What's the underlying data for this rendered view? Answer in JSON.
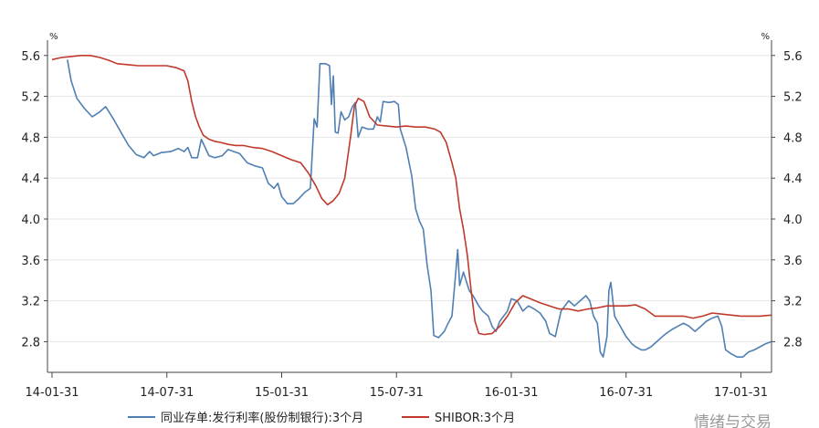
{
  "chart_data": {
    "type": "line",
    "title": "",
    "y_unit": "%",
    "ylim": [
      2.5,
      5.75
    ],
    "y_ticks": [
      "5.6",
      "5.2",
      "4.8",
      "4.4",
      "4.0",
      "3.6",
      "3.2",
      "2.8"
    ],
    "x_tick_labels": [
      "14-01-31",
      "14-07-31",
      "15-01-31",
      "15-07-31",
      "16-01-31",
      "16-07-31",
      "17-01-31"
    ],
    "x_range_months": [
      0,
      37.6
    ],
    "legend_position": "bottom",
    "grid": "horizontal",
    "series": [
      {
        "name": "同业存单:发行利率(股份制银行):3个月",
        "color": "#4f7fb3",
        "points": [
          [
            0.8,
            5.56
          ],
          [
            1.0,
            5.35
          ],
          [
            1.3,
            5.18
          ],
          [
            1.7,
            5.08
          ],
          [
            2.1,
            5.0
          ],
          [
            2.5,
            5.05
          ],
          [
            2.8,
            5.1
          ],
          [
            3.2,
            4.98
          ],
          [
            3.6,
            4.85
          ],
          [
            4.0,
            4.72
          ],
          [
            4.4,
            4.63
          ],
          [
            4.8,
            4.6
          ],
          [
            5.1,
            4.66
          ],
          [
            5.3,
            4.62
          ],
          [
            5.7,
            4.65
          ],
          [
            6.2,
            4.66
          ],
          [
            6.6,
            4.69
          ],
          [
            6.9,
            4.66
          ],
          [
            7.1,
            4.7
          ],
          [
            7.3,
            4.6
          ],
          [
            7.6,
            4.6
          ],
          [
            7.8,
            4.78
          ],
          [
            8.0,
            4.7
          ],
          [
            8.2,
            4.62
          ],
          [
            8.5,
            4.6
          ],
          [
            8.9,
            4.62
          ],
          [
            9.2,
            4.68
          ],
          [
            9.5,
            4.66
          ],
          [
            9.8,
            4.64
          ],
          [
            10.2,
            4.55
          ],
          [
            10.6,
            4.52
          ],
          [
            11.0,
            4.5
          ],
          [
            11.3,
            4.35
          ],
          [
            11.6,
            4.3
          ],
          [
            11.8,
            4.35
          ],
          [
            12.0,
            4.22
          ],
          [
            12.3,
            4.15
          ],
          [
            12.6,
            4.15
          ],
          [
            12.9,
            4.2
          ],
          [
            13.2,
            4.26
          ],
          [
            13.5,
            4.3
          ],
          [
            13.7,
            4.98
          ],
          [
            13.85,
            4.9
          ],
          [
            14.0,
            5.52
          ],
          [
            14.3,
            5.52
          ],
          [
            14.5,
            5.5
          ],
          [
            14.6,
            5.12
          ],
          [
            14.7,
            5.4
          ],
          [
            14.8,
            4.85
          ],
          [
            14.95,
            4.84
          ],
          [
            15.1,
            5.05
          ],
          [
            15.3,
            4.97
          ],
          [
            15.5,
            5.0
          ],
          [
            15.7,
            5.1
          ],
          [
            15.85,
            5.14
          ],
          [
            16.0,
            4.8
          ],
          [
            16.2,
            4.9
          ],
          [
            16.5,
            4.88
          ],
          [
            16.8,
            4.88
          ],
          [
            17.0,
            5.0
          ],
          [
            17.15,
            4.95
          ],
          [
            17.3,
            5.15
          ],
          [
            17.6,
            5.14
          ],
          [
            17.9,
            5.15
          ],
          [
            18.1,
            5.12
          ],
          [
            18.2,
            4.88
          ],
          [
            18.5,
            4.7
          ],
          [
            18.8,
            4.42
          ],
          [
            19.0,
            4.1
          ],
          [
            19.2,
            3.98
          ],
          [
            19.4,
            3.9
          ],
          [
            19.6,
            3.55
          ],
          [
            19.8,
            3.3
          ],
          [
            19.95,
            2.86
          ],
          [
            20.2,
            2.84
          ],
          [
            20.5,
            2.9
          ],
          [
            20.7,
            2.98
          ],
          [
            20.9,
            3.05
          ],
          [
            21.1,
            3.48
          ],
          [
            21.2,
            3.7
          ],
          [
            21.3,
            3.35
          ],
          [
            21.5,
            3.48
          ],
          [
            21.8,
            3.3
          ],
          [
            22.0,
            3.25
          ],
          [
            22.3,
            3.15
          ],
          [
            22.5,
            3.1
          ],
          [
            22.8,
            3.05
          ],
          [
            23.0,
            2.95
          ],
          [
            23.2,
            2.9
          ],
          [
            23.4,
            3.0
          ],
          [
            23.6,
            3.05
          ],
          [
            23.8,
            3.1
          ],
          [
            24.0,
            3.22
          ],
          [
            24.3,
            3.2
          ],
          [
            24.6,
            3.1
          ],
          [
            24.9,
            3.15
          ],
          [
            25.2,
            3.12
          ],
          [
            25.5,
            3.08
          ],
          [
            25.8,
            3.0
          ],
          [
            26.0,
            2.88
          ],
          [
            26.3,
            2.85
          ],
          [
            26.6,
            3.1
          ],
          [
            27.0,
            3.2
          ],
          [
            27.3,
            3.15
          ],
          [
            27.6,
            3.2
          ],
          [
            27.9,
            3.25
          ],
          [
            28.1,
            3.2
          ],
          [
            28.3,
            3.05
          ],
          [
            28.5,
            2.98
          ],
          [
            28.65,
            2.7
          ],
          [
            28.8,
            2.65
          ],
          [
            29.0,
            2.85
          ],
          [
            29.1,
            3.3
          ],
          [
            29.2,
            3.38
          ],
          [
            29.4,
            3.05
          ],
          [
            29.7,
            2.95
          ],
          [
            30.0,
            2.85
          ],
          [
            30.3,
            2.78
          ],
          [
            30.5,
            2.75
          ],
          [
            30.8,
            2.72
          ],
          [
            31.0,
            2.72
          ],
          [
            31.3,
            2.75
          ],
          [
            31.6,
            2.8
          ],
          [
            31.9,
            2.85
          ],
          [
            32.1,
            2.88
          ],
          [
            32.4,
            2.92
          ],
          [
            32.7,
            2.95
          ],
          [
            33.0,
            2.98
          ],
          [
            33.3,
            2.95
          ],
          [
            33.6,
            2.9
          ],
          [
            33.9,
            2.95
          ],
          [
            34.2,
            3.0
          ],
          [
            34.5,
            3.03
          ],
          [
            34.8,
            3.05
          ],
          [
            35.0,
            2.95
          ],
          [
            35.2,
            2.72
          ],
          [
            35.5,
            2.68
          ],
          [
            35.8,
            2.65
          ],
          [
            36.1,
            2.65
          ],
          [
            36.4,
            2.7
          ],
          [
            36.7,
            2.72
          ],
          [
            37.0,
            2.75
          ],
          [
            37.3,
            2.78
          ],
          [
            37.6,
            2.8
          ]
        ]
      },
      {
        "name": "SHIBOR:3个月",
        "color": "#c0392b",
        "points": [
          [
            0,
            5.56
          ],
          [
            0.5,
            5.58
          ],
          [
            1.0,
            5.59
          ],
          [
            1.5,
            5.6
          ],
          [
            2.0,
            5.6
          ],
          [
            2.5,
            5.58
          ],
          [
            3.0,
            5.55
          ],
          [
            3.4,
            5.52
          ],
          [
            4.0,
            5.51
          ],
          [
            4.5,
            5.5
          ],
          [
            5.0,
            5.5
          ],
          [
            5.5,
            5.5
          ],
          [
            6.0,
            5.5
          ],
          [
            6.5,
            5.48
          ],
          [
            6.9,
            5.45
          ],
          [
            7.1,
            5.35
          ],
          [
            7.3,
            5.15
          ],
          [
            7.5,
            5.0
          ],
          [
            7.7,
            4.9
          ],
          [
            7.9,
            4.82
          ],
          [
            8.2,
            4.78
          ],
          [
            8.5,
            4.76
          ],
          [
            8.8,
            4.75
          ],
          [
            9.2,
            4.73
          ],
          [
            9.6,
            4.72
          ],
          [
            10.0,
            4.72
          ],
          [
            10.5,
            4.7
          ],
          [
            11.0,
            4.69
          ],
          [
            11.5,
            4.66
          ],
          [
            12.0,
            4.62
          ],
          [
            12.5,
            4.58
          ],
          [
            13.0,
            4.55
          ],
          [
            13.4,
            4.45
          ],
          [
            13.8,
            4.32
          ],
          [
            14.1,
            4.2
          ],
          [
            14.4,
            4.14
          ],
          [
            14.7,
            4.18
          ],
          [
            15.0,
            4.25
          ],
          [
            15.3,
            4.4
          ],
          [
            15.6,
            4.8
          ],
          [
            15.8,
            5.1
          ],
          [
            16.0,
            5.18
          ],
          [
            16.3,
            5.15
          ],
          [
            16.6,
            5.0
          ],
          [
            17.0,
            4.92
          ],
          [
            17.5,
            4.91
          ],
          [
            18.0,
            4.9
          ],
          [
            18.5,
            4.91
          ],
          [
            19.0,
            4.9
          ],
          [
            19.5,
            4.9
          ],
          [
            20.0,
            4.88
          ],
          [
            20.3,
            4.85
          ],
          [
            20.6,
            4.75
          ],
          [
            20.9,
            4.55
          ],
          [
            21.1,
            4.4
          ],
          [
            21.3,
            4.1
          ],
          [
            21.5,
            3.9
          ],
          [
            21.7,
            3.65
          ],
          [
            21.9,
            3.3
          ],
          [
            22.1,
            3.0
          ],
          [
            22.3,
            2.88
          ],
          [
            22.6,
            2.87
          ],
          [
            23.0,
            2.88
          ],
          [
            23.4,
            2.95
          ],
          [
            23.8,
            3.05
          ],
          [
            24.2,
            3.18
          ],
          [
            24.6,
            3.25
          ],
          [
            25.0,
            3.22
          ],
          [
            25.5,
            3.18
          ],
          [
            26.0,
            3.15
          ],
          [
            26.5,
            3.12
          ],
          [
            27.0,
            3.12
          ],
          [
            27.5,
            3.1
          ],
          [
            28.0,
            3.12
          ],
          [
            28.5,
            3.13
          ],
          [
            29.0,
            3.15
          ],
          [
            29.5,
            3.15
          ],
          [
            30.0,
            3.15
          ],
          [
            30.5,
            3.16
          ],
          [
            31.0,
            3.12
          ],
          [
            31.5,
            3.05
          ],
          [
            32.0,
            3.05
          ],
          [
            32.5,
            3.05
          ],
          [
            33.0,
            3.05
          ],
          [
            33.5,
            3.03
          ],
          [
            34.0,
            3.05
          ],
          [
            34.5,
            3.08
          ],
          [
            35.0,
            3.07
          ],
          [
            35.5,
            3.06
          ],
          [
            36.0,
            3.05
          ],
          [
            36.5,
            3.05
          ],
          [
            37.0,
            3.05
          ],
          [
            37.6,
            3.06
          ]
        ]
      }
    ]
  },
  "watermark": "情绪与交易"
}
